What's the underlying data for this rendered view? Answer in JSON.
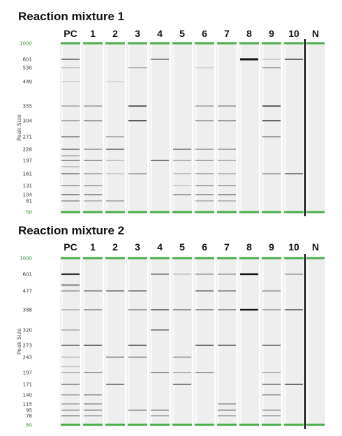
{
  "panels": [
    {
      "title": "Reaction mixture 1",
      "y_axis_title": "Peak Size",
      "ticks": [
        "1000",
        "601",
        "530",
        "449",
        "355",
        "304",
        "271",
        "228",
        "197",
        "161",
        "131",
        "104",
        "81",
        "50"
      ],
      "lanes": [
        {
          "label": "PC",
          "bands": [
            {
              "size": 601,
              "i": 0.55
            },
            {
              "size": 530,
              "i": 0.18
            },
            {
              "size": 449,
              "i": 0.12
            },
            {
              "size": 355,
              "i": 0.28
            },
            {
              "size": 304,
              "i": 0.32
            },
            {
              "size": 271,
              "i": 0.45
            },
            {
              "size": 228,
              "i": 0.5
            },
            {
              "size": 210,
              "i": 0.3
            },
            {
              "size": 197,
              "i": 0.45
            },
            {
              "size": 180,
              "i": 0.2
            },
            {
              "size": 161,
              "i": 0.45
            },
            {
              "size": 131,
              "i": 0.35
            },
            {
              "size": 104,
              "i": 0.5
            },
            {
              "size": 81,
              "i": 0.35
            }
          ]
        },
        {
          "label": "1",
          "bands": [
            {
              "size": 355,
              "i": 0.32
            },
            {
              "size": 304,
              "i": 0.4
            },
            {
              "size": 228,
              "i": 0.35
            },
            {
              "size": 197,
              "i": 0.4
            },
            {
              "size": 161,
              "i": 0.3
            },
            {
              "size": 131,
              "i": 0.35
            },
            {
              "size": 104,
              "i": 0.45
            },
            {
              "size": 81,
              "i": 0.25
            }
          ]
        },
        {
          "label": "2",
          "bands": [
            {
              "size": 449,
              "i": 0.1
            },
            {
              "size": 271,
              "i": 0.3
            },
            {
              "size": 228,
              "i": 0.55
            },
            {
              "size": 197,
              "i": 0.2
            },
            {
              "size": 161,
              "i": 0.15
            },
            {
              "size": 81,
              "i": 0.3
            }
          ]
        },
        {
          "label": "3",
          "bands": [
            {
              "size": 530,
              "i": 0.3
            },
            {
              "size": 355,
              "i": 0.7
            },
            {
              "size": 304,
              "i": 0.75
            },
            {
              "size": 161,
              "i": 0.35
            }
          ]
        },
        {
          "label": "4",
          "bands": [
            {
              "size": 601,
              "i": 0.5
            },
            {
              "size": 197,
              "i": 0.6
            }
          ]
        },
        {
          "label": "5",
          "bands": [
            {
              "size": 228,
              "i": 0.5
            },
            {
              "size": 197,
              "i": 0.3
            },
            {
              "size": 161,
              "i": 0.2
            },
            {
              "size": 131,
              "i": 0.15
            },
            {
              "size": 104,
              "i": 0.4
            }
          ]
        },
        {
          "label": "6",
          "bands": [
            {
              "size": 530,
              "i": 0.12
            },
            {
              "size": 355,
              "i": 0.3
            },
            {
              "size": 304,
              "i": 0.35
            },
            {
              "size": 228,
              "i": 0.35
            },
            {
              "size": 197,
              "i": 0.35
            },
            {
              "size": 161,
              "i": 0.3
            },
            {
              "size": 131,
              "i": 0.35
            },
            {
              "size": 104,
              "i": 0.4
            },
            {
              "size": 81,
              "i": 0.25
            }
          ]
        },
        {
          "label": "7",
          "bands": [
            {
              "size": 355,
              "i": 0.35
            },
            {
              "size": 304,
              "i": 0.4
            },
            {
              "size": 228,
              "i": 0.35
            },
            {
              "size": 197,
              "i": 0.3
            },
            {
              "size": 161,
              "i": 0.25
            },
            {
              "size": 131,
              "i": 0.35
            },
            {
              "size": 104,
              "i": 0.45
            },
            {
              "size": 81,
              "i": 0.25
            }
          ]
        },
        {
          "label": "8",
          "bands": [
            {
              "size": 601,
              "i": 1.0,
              "w": 3.0
            }
          ]
        },
        {
          "label": "9",
          "bands": [
            {
              "size": 601,
              "i": 0.15
            },
            {
              "size": 530,
              "i": 0.35
            },
            {
              "size": 355,
              "i": 0.7
            },
            {
              "size": 304,
              "i": 0.7
            },
            {
              "size": 271,
              "i": 0.4
            },
            {
              "size": 161,
              "i": 0.35
            }
          ]
        },
        {
          "label": "10",
          "bands": [
            {
              "size": 601,
              "i": 0.65
            },
            {
              "size": 161,
              "i": 0.55
            }
          ]
        },
        {
          "label": "N",
          "bands": []
        }
      ]
    },
    {
      "title": "Reaction mixture 2",
      "y_axis_title": "Peak Size",
      "ticks": [
        "1000",
        "601",
        "477",
        "388",
        "320",
        "273",
        "243",
        "197",
        "171",
        "140",
        "115",
        "95",
        "78",
        "50"
      ],
      "lanes": [
        {
          "label": "PC",
          "bands": [
            {
              "size": 601,
              "i": 0.85,
              "w": 2.2
            },
            {
              "size": 520,
              "i": 0.35,
              "w": 3.0
            },
            {
              "size": 477,
              "i": 0.35
            },
            {
              "size": 388,
              "i": 0.25
            },
            {
              "size": 320,
              "i": 0.25
            },
            {
              "size": 273,
              "i": 0.55
            },
            {
              "size": 243,
              "i": 0.15
            },
            {
              "size": 215,
              "i": 0.15
            },
            {
              "size": 197,
              "i": 0.25
            },
            {
              "size": 171,
              "i": 0.45
            },
            {
              "size": 140,
              "i": 0.3
            },
            {
              "size": 115,
              "i": 0.3
            },
            {
              "size": 95,
              "i": 0.3
            },
            {
              "size": 78,
              "i": 0.35
            }
          ]
        },
        {
          "label": "1",
          "bands": [
            {
              "size": 477,
              "i": 0.45
            },
            {
              "size": 388,
              "i": 0.4
            },
            {
              "size": 273,
              "i": 0.65
            },
            {
              "size": 197,
              "i": 0.4
            },
            {
              "size": 140,
              "i": 0.35
            },
            {
              "size": 115,
              "i": 0.35
            },
            {
              "size": 95,
              "i": 0.35
            },
            {
              "size": 78,
              "i": 0.3
            }
          ]
        },
        {
          "label": "2",
          "bands": [
            {
              "size": 477,
              "i": 0.5
            },
            {
              "size": 243,
              "i": 0.35
            },
            {
              "size": 171,
              "i": 0.55
            }
          ]
        },
        {
          "label": "3",
          "bands": [
            {
              "size": 477,
              "i": 0.5
            },
            {
              "size": 388,
              "i": 0.4
            },
            {
              "size": 273,
              "i": 0.65
            },
            {
              "size": 243,
              "i": 0.35
            },
            {
              "size": 95,
              "i": 0.35
            }
          ]
        },
        {
          "label": "4",
          "bands": [
            {
              "size": 601,
              "i": 0.45
            },
            {
              "size": 388,
              "i": 0.6
            },
            {
              "size": 320,
              "i": 0.5
            },
            {
              "size": 197,
              "i": 0.45
            },
            {
              "size": 95,
              "i": 0.35
            },
            {
              "size": 78,
              "i": 0.3
            }
          ]
        },
        {
          "label": "5",
          "bands": [
            {
              "size": 601,
              "i": 0.15
            },
            {
              "size": 388,
              "i": 0.45
            },
            {
              "size": 243,
              "i": 0.3
            },
            {
              "size": 197,
              "i": 0.3
            },
            {
              "size": 171,
              "i": 0.55
            }
          ]
        },
        {
          "label": "6",
          "bands": [
            {
              "size": 601,
              "i": 0.3
            },
            {
              "size": 477,
              "i": 0.5
            },
            {
              "size": 388,
              "i": 0.45
            },
            {
              "size": 273,
              "i": 0.65
            },
            {
              "size": 197,
              "i": 0.4
            }
          ]
        },
        {
          "label": "7",
          "bands": [
            {
              "size": 601,
              "i": 0.3
            },
            {
              "size": 477,
              "i": 0.45
            },
            {
              "size": 388,
              "i": 0.45
            },
            {
              "size": 273,
              "i": 0.6
            },
            {
              "size": 115,
              "i": 0.35
            },
            {
              "size": 95,
              "i": 0.35
            },
            {
              "size": 78,
              "i": 0.3
            }
          ]
        },
        {
          "label": "8",
          "bands": [
            {
              "size": 601,
              "i": 1.0,
              "w": 2.4
            },
            {
              "size": 388,
              "i": 1.0,
              "w": 2.4
            }
          ]
        },
        {
          "label": "9",
          "bands": [
            {
              "size": 477,
              "i": 0.35
            },
            {
              "size": 388,
              "i": 0.35
            },
            {
              "size": 273,
              "i": 0.55
            },
            {
              "size": 197,
              "i": 0.3
            },
            {
              "size": 171,
              "i": 0.5
            },
            {
              "size": 140,
              "i": 0.35
            },
            {
              "size": 95,
              "i": 0.3
            },
            {
              "size": 78,
              "i": 0.3
            }
          ]
        },
        {
          "label": "10",
          "bands": [
            {
              "size": 601,
              "i": 0.3
            },
            {
              "size": 388,
              "i": 0.6
            },
            {
              "size": 171,
              "i": 0.65
            }
          ]
        },
        {
          "label": "N",
          "bands": []
        }
      ]
    }
  ],
  "colors": {
    "marker_line": "#4cae4c",
    "lane_background": "#f0f0f0",
    "lane_separator": "#ffffff",
    "band_dark": "#111111",
    "tick_text": "#333333"
  }
}
